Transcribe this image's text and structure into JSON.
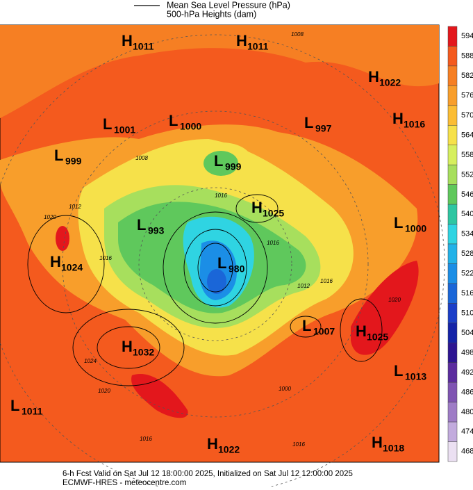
{
  "legend": {
    "line_label": "Mean Sea Level Pressure (hPa)",
    "fill_label": "500-hPa Heights (dam)"
  },
  "colorbar": {
    "levels": [
      594,
      588,
      582,
      576,
      570,
      564,
      558,
      552,
      546,
      540,
      534,
      528,
      522,
      516,
      510,
      504,
      498,
      492,
      486,
      480,
      474,
      468
    ],
    "colors": [
      "#e3171c",
      "#f45a1e",
      "#f67f23",
      "#f89e2b",
      "#fbbd34",
      "#f6e14a",
      "#d6ef5e",
      "#a7df5d",
      "#5fc85c",
      "#2ec6a2",
      "#2fd4e2",
      "#22b2e8",
      "#1b8ee6",
      "#1a66d8",
      "#1b3ec8",
      "#1523a8",
      "#2d1592",
      "#5b2c9e",
      "#7f54b2",
      "#9e7cc6",
      "#c2abdd",
      "#ebe0f2"
    ]
  },
  "centers": [
    {
      "letter": "H",
      "value": 1011
    },
    {
      "letter": "H",
      "value": 1011
    },
    {
      "letter": "H",
      "value": 1022
    },
    {
      "letter": "L",
      "value": 1001
    },
    {
      "letter": "L",
      "value": 1000
    },
    {
      "letter": "L",
      "value": 997
    },
    {
      "letter": "H",
      "value": 1016
    },
    {
      "letter": "L",
      "value": 999
    },
    {
      "letter": "L",
      "value": 999
    },
    {
      "letter": "H",
      "value": 1025
    },
    {
      "letter": "L",
      "value": 993
    },
    {
      "letter": "L",
      "value": 1000
    },
    {
      "letter": "H",
      "value": 1024
    },
    {
      "letter": "L",
      "value": 980
    },
    {
      "letter": "L",
      "value": 1007
    },
    {
      "letter": "H",
      "value": 1025
    },
    {
      "letter": "H",
      "value": 1032
    },
    {
      "letter": "L",
      "value": 1013
    },
    {
      "letter": "L",
      "value": 1011
    },
    {
      "letter": "H",
      "value": 1022
    },
    {
      "letter": "H",
      "value": 1018
    }
  ],
  "contour_labels": [
    1008,
    1008,
    1012,
    1020,
    1016,
    1016,
    1016,
    1012,
    1016,
    1020,
    1024,
    1020,
    1000,
    1016,
    1016
  ],
  "footer": {
    "line1": "6-h Fcst Valid on Sat Jul 12 18:00:00 2025, Initialized on Sat Jul 12 12:00:00 2025",
    "line2": "ECMWF-HRES  - meteocentre.com"
  }
}
